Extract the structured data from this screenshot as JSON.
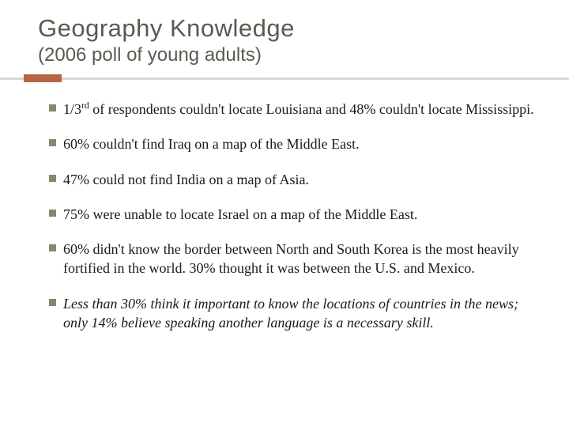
{
  "title": {
    "text": "Geography Knowledge",
    "fontsize": 31,
    "color": "#5a5a50"
  },
  "subtitle": {
    "text": "(2006 poll of young adults)",
    "fontsize": 24,
    "color": "#5a5a50"
  },
  "rule": {
    "line_color": "#dcd7cc",
    "accent_color": "#b56544"
  },
  "bullets": {
    "fontsize": 18,
    "marker_color": "#8a8470",
    "text_color": "#1a1a1a",
    "items": [
      {
        "html": "1/3<sup>rd</sup> of respondents couldn't locate Louisiana and 48% couldn't locate Mississippi.",
        "italic": false
      },
      {
        "html": "60% couldn't find Iraq on a map of the Middle East.",
        "italic": false
      },
      {
        "html": "47% could not find India on a map of Asia.",
        "italic": false
      },
      {
        "html": "75% were unable to locate Israel on a map of the Middle East.",
        "italic": false
      },
      {
        "html": "60% didn't know the border between North and South Korea is the most heavily fortified in the world. 30% thought it was between the U.S. and Mexico.",
        "italic": false
      },
      {
        "html": "Less than 30% think it important to know the locations of countries in the news; only 14% believe speaking another language is a necessary skill.",
        "italic": true
      }
    ]
  }
}
